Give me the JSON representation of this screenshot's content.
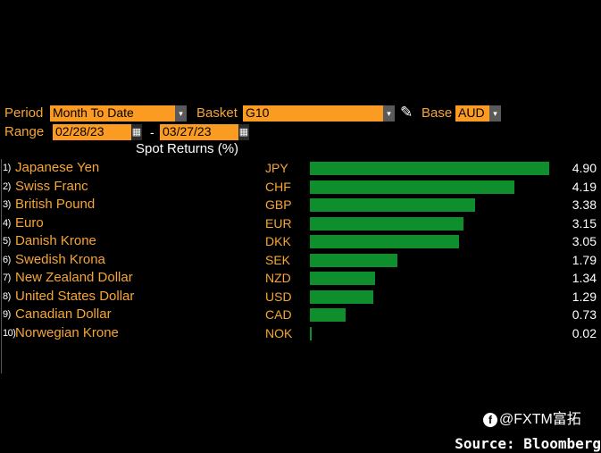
{
  "controls": {
    "period_label": "Period",
    "period_value": "Month To Date",
    "basket_label": "Basket",
    "basket_value": "G10",
    "base_label": "Base",
    "base_value": "AUD",
    "range_label": "Range",
    "range_start": "02/28/23",
    "range_end": "03/27/23",
    "range_separator": "-",
    "dropdown_glyph": "▾",
    "calendar_glyph": "▦",
    "pencil_glyph": "✎"
  },
  "chart_data": {
    "type": "bar",
    "title": "Spot Returns (%)",
    "orientation": "horizontal",
    "xlim": [
      0,
      4.9
    ],
    "rows": [
      {
        "rank": "1)",
        "name": "Japanese Yen",
        "code": "JPY",
        "value": 4.9,
        "label": "4.90"
      },
      {
        "rank": "2)",
        "name": "Swiss Franc",
        "code": "CHF",
        "value": 4.19,
        "label": "4.19"
      },
      {
        "rank": "3)",
        "name": "British Pound",
        "code": "GBP",
        "value": 3.38,
        "label": "3.38"
      },
      {
        "rank": "4)",
        "name": "Euro",
        "code": "EUR",
        "value": 3.15,
        "label": "3.15"
      },
      {
        "rank": "5)",
        "name": "Danish Krone",
        "code": "DKK",
        "value": 3.05,
        "label": "3.05"
      },
      {
        "rank": "6)",
        "name": "Swedish Krona",
        "code": "SEK",
        "value": 1.79,
        "label": "1.79"
      },
      {
        "rank": "7)",
        "name": "New Zealand Dollar",
        "code": "NZD",
        "value": 1.34,
        "label": "1.34"
      },
      {
        "rank": "8)",
        "name": "United States Dollar",
        "code": "USD",
        "value": 1.29,
        "label": "1.29"
      },
      {
        "rank": "9)",
        "name": "Canadian Dollar",
        "code": "CAD",
        "value": 0.73,
        "label": "0.73"
      },
      {
        "rank": "10)",
        "name": "Norwegian Krone",
        "code": "NOK",
        "value": 0.02,
        "label": "0.02"
      }
    ],
    "bar_color": "#0f8e2e"
  },
  "watermark": {
    "icon_letter": "f",
    "text": "@FXTM富拓"
  },
  "source": "Source: Bloomberg"
}
